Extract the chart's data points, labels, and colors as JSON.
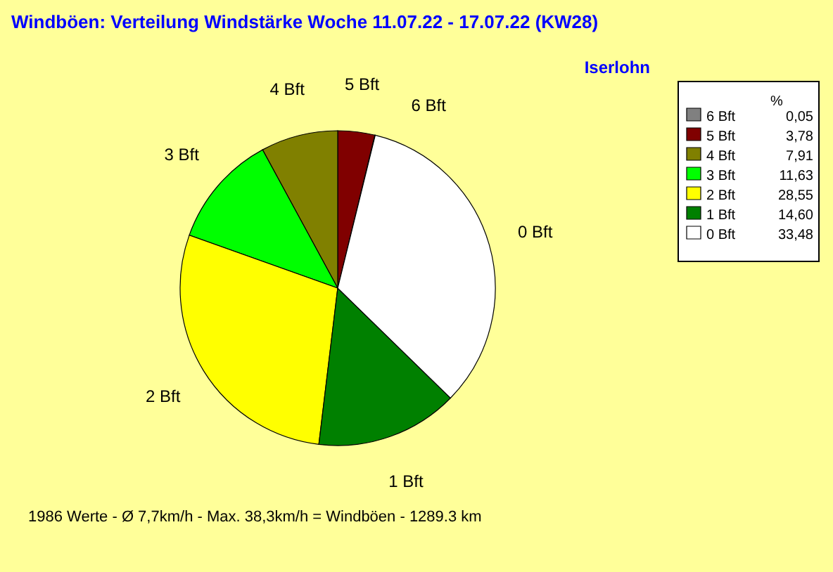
{
  "chart_data": {
    "type": "pie",
    "title": "Windböen: Verteilung Windstärke  Woche 11.07.22 - 17.07.22 (KW28)",
    "subtitle": "Iserlohn",
    "legend_title": "%",
    "categories": [
      "6 Bft",
      "5 Bft",
      "4 Bft",
      "3 Bft",
      "2 Bft",
      "1 Bft",
      "0 Bft"
    ],
    "values": [
      0.05,
      3.78,
      7.91,
      11.63,
      28.55,
      14.6,
      33.48
    ],
    "value_labels": [
      "0,05",
      "3,78",
      "7,91",
      "11,63",
      "28,55",
      "14,60",
      "33,48"
    ],
    "colors": [
      "#808080",
      "#800000",
      "#808000",
      "#00ff00",
      "#ffff00",
      "#008000",
      "#ffffff"
    ],
    "legend": "top right",
    "annotations": [
      "1986 Werte   -   Ø 7,7km/h  -  Max. 38,3km/h = Windböen   -   1289.3 km"
    ]
  }
}
